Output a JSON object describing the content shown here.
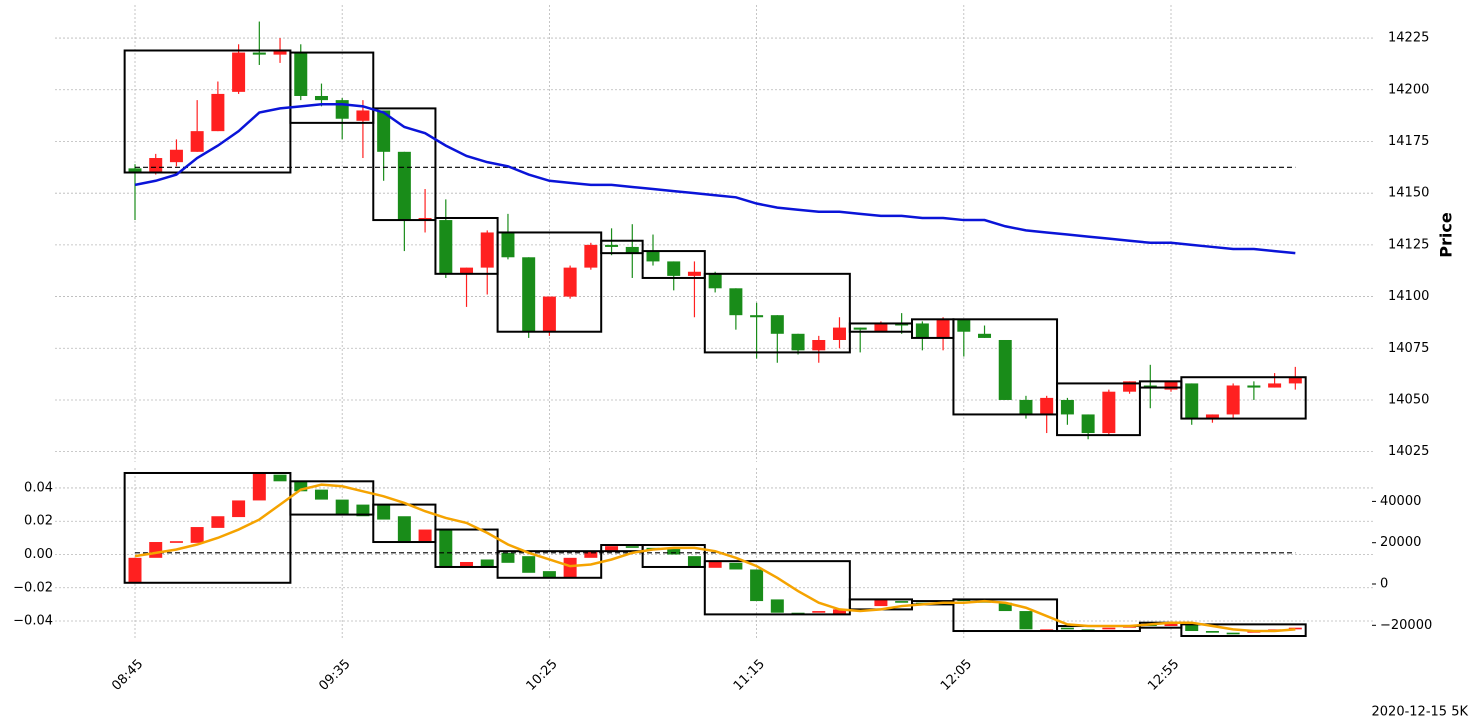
{
  "chart_data": [
    {
      "type": "candlestick",
      "y_label": "Price",
      "y_axis_side": "right",
      "grid": true,
      "up_color": "#ff2020",
      "down_color": "#198c19",
      "open": [
        14162,
        14160,
        14165,
        14170,
        14180,
        14199,
        14218,
        14217,
        14218,
        14197,
        14195,
        14185,
        14190,
        14170,
        14137,
        14137,
        14111,
        14114,
        14131,
        14119,
        14083,
        14100,
        14114,
        14125,
        14124,
        14122,
        14117,
        14110,
        14111,
        14104,
        14091,
        14091,
        14082,
        14074,
        14079,
        14085,
        14083,
        14087,
        14087,
        14080,
        14089,
        14082,
        14079,
        14050,
        14043,
        14050,
        14043,
        14034,
        14054,
        14057,
        14055,
        14058,
        14041,
        14043,
        14057,
        14056,
        14058
      ],
      "close": [
        14160,
        14167,
        14171,
        14180,
        14198,
        14218,
        14217,
        14219,
        14197,
        14195,
        14186,
        14190,
        14170,
        14137,
        14138,
        14111,
        14114,
        14131,
        14119,
        14083,
        14100,
        14114,
        14125,
        14124,
        14121,
        14117,
        14110,
        14112,
        14104,
        14091,
        14090,
        14082,
        14074,
        14079,
        14085,
        14084,
        14087,
        14086,
        14080,
        14089,
        14083,
        14080,
        14050,
        14043,
        14051,
        14043,
        14034,
        14054,
        14059,
        14056,
        14059,
        14041,
        14043,
        14057,
        14056,
        14058,
        14061
      ],
      "high": [
        14164,
        14169,
        14176,
        14195,
        14204,
        14222,
        14233,
        14225,
        14222,
        14203,
        14196,
        14195,
        14190,
        14170,
        14152,
        14147,
        14114,
        14132,
        14140,
        14119,
        14100,
        14115,
        14126,
        14133,
        14135,
        14130,
        14117,
        14117,
        14112,
        14104,
        14097,
        14091,
        14082,
        14081,
        14090,
        14085,
        14088,
        14092,
        14088,
        14090,
        14089,
        14086,
        14079,
        14052,
        14052,
        14051,
        14043,
        14055,
        14059,
        14067,
        14059,
        14058,
        14043,
        14058,
        14059,
        14063,
        14066
      ],
      "low": [
        14137,
        14159,
        14163,
        14170,
        14180,
        14198,
        14212,
        14213,
        14195,
        14192,
        14176,
        14167,
        14156,
        14122,
        14131,
        14109,
        14095,
        14101,
        14118,
        14080,
        14081,
        14099,
        14113,
        14120,
        14109,
        14115,
        14103,
        14090,
        14102,
        14084,
        14070,
        14068,
        14072,
        14068,
        14075,
        14073,
        14083,
        14082,
        14074,
        14074,
        14071,
        14080,
        14050,
        14041,
        14034,
        14038,
        14031,
        14033,
        14053,
        14046,
        14054,
        14038,
        14039,
        14041,
        14050,
        14056,
        14055
      ],
      "lines": [
        {
          "color": "#0a14d8",
          "values": [
            14154,
            14156,
            14159,
            14167,
            14173,
            14180,
            14189,
            14191,
            14192,
            14193,
            14193,
            14192,
            14189,
            14182,
            14179,
            14173,
            14168,
            14165,
            14163,
            14159,
            14156,
            14155,
            14154,
            14154,
            14153,
            14152,
            14151,
            14150,
            14149,
            14148,
            14145,
            14143,
            14142,
            14141,
            14141,
            14140,
            14139,
            14139,
            14138,
            14138,
            14137,
            14137,
            14134,
            14132,
            14131,
            14130,
            14129,
            14128,
            14127,
            14126,
            14126,
            14125,
            14124,
            14123,
            14123,
            14122,
            14121
          ]
        }
      ],
      "hlines": [
        {
          "value": 14162.5
        }
      ],
      "boxes": [
        {
          "from": 0,
          "to": 7,
          "high": 14219,
          "low": 14160
        },
        {
          "from": 8,
          "to": 11,
          "high": 14218,
          "low": 14184
        },
        {
          "from": 12,
          "to": 14,
          "high": 14191,
          "low": 14137
        },
        {
          "from": 15,
          "to": 17,
          "high": 14138,
          "low": 14111
        },
        {
          "from": 18,
          "to": 22,
          "high": 14131,
          "low": 14083
        },
        {
          "from": 23,
          "to": 24,
          "high": 14127,
          "low": 14121
        },
        {
          "from": 25,
          "to": 27,
          "high": 14122,
          "low": 14109
        },
        {
          "from": 28,
          "to": 34,
          "high": 14111,
          "low": 14073
        },
        {
          "from": 35,
          "to": 37,
          "high": 14087,
          "low": 14083
        },
        {
          "from": 38,
          "to": 39,
          "high": 14089,
          "low": 14080
        },
        {
          "from": 40,
          "to": 44,
          "high": 14089,
          "low": 14043
        },
        {
          "from": 45,
          "to": 48,
          "high": 14058,
          "low": 14033
        },
        {
          "from": 49,
          "to": 50,
          "high": 14059,
          "low": 14056
        },
        {
          "from": 51,
          "to": 56,
          "high": 14061,
          "low": 14041
        }
      ],
      "ylim": [
        14020,
        14241
      ],
      "yticks": [
        14025,
        14050,
        14075,
        14100,
        14125,
        14150,
        14175,
        14200,
        14225
      ]
    },
    {
      "type": "candlestick",
      "grid": true,
      "up_color": "#ff2020",
      "down_color": "#198c19",
      "categories": [
        "08:45",
        null,
        null,
        null,
        null,
        null,
        null,
        null,
        null,
        null,
        "09:35",
        null,
        null,
        null,
        null,
        null,
        null,
        null,
        null,
        null,
        "10:25",
        null,
        null,
        null,
        null,
        null,
        null,
        null,
        null,
        null,
        "11:15",
        null,
        null,
        null,
        null,
        null,
        null,
        null,
        null,
        null,
        "12:05",
        null,
        null,
        null,
        null,
        null,
        null,
        null,
        null,
        null,
        "12:55",
        null,
        null,
        null,
        null,
        null,
        null
      ],
      "open": [
        -0.017,
        -0.002,
        0.007,
        0.007,
        0.016,
        0.0225,
        0.0325,
        0.048,
        0.044,
        0.039,
        0.033,
        0.03,
        0.03,
        0.023,
        0.008,
        0.015,
        -0.0075,
        -0.003,
        0.001,
        -0.001,
        -0.01,
        -0.014,
        -0.002,
        0.002,
        0.005,
        0.004,
        0.004,
        -0.001,
        -0.008,
        -0.005,
        -0.009,
        -0.027,
        -0.035,
        -0.035,
        -0.036,
        -0.033,
        -0.031,
        -0.028,
        -0.029,
        -0.03,
        -0.027,
        -0.028,
        -0.029,
        -0.034,
        -0.046,
        -0.044,
        -0.045,
        -0.045,
        -0.044,
        -0.042,
        -0.043,
        -0.042,
        -0.046,
        -0.047,
        -0.047,
        -0.046,
        -0.045
      ],
      "close": [
        -0.002,
        0.0075,
        0.008,
        0.0165,
        0.023,
        0.0325,
        0.049,
        0.044,
        0.038,
        0.033,
        0.024,
        0.023,
        0.021,
        0.008,
        0.015,
        -0.0075,
        -0.0045,
        -0.007,
        -0.005,
        -0.011,
        -0.014,
        -0.002,
        0.002,
        0.005,
        0.004,
        0.003,
        0.0,
        -0.007,
        -0.004,
        -0.009,
        -0.028,
        -0.035,
        -0.036,
        -0.034,
        -0.033,
        -0.034,
        -0.027,
        -0.029,
        -0.03,
        -0.028,
        -0.028,
        -0.029,
        -0.034,
        -0.045,
        -0.045,
        -0.045,
        -0.046,
        -0.044,
        -0.043,
        -0.043,
        -0.041,
        -0.046,
        -0.047,
        -0.048,
        -0.046,
        -0.045,
        -0.044
      ],
      "lines": [
        {
          "color": "#f5a300",
          "values": [
            -0.001,
            0.001,
            0.003,
            0.006,
            0.01,
            0.015,
            0.021,
            0.03,
            0.039,
            0.042,
            0.041,
            0.038,
            0.035,
            0.031,
            0.026,
            0.022,
            0.019,
            0.013,
            0.006,
            0.001,
            -0.003,
            -0.007,
            -0.006,
            -0.003,
            0.001,
            0.003,
            0.004,
            0.004,
            0.002,
            -0.002,
            -0.007,
            -0.014,
            -0.022,
            -0.029,
            -0.033,
            -0.034,
            -0.033,
            -0.031,
            -0.03,
            -0.029,
            -0.029,
            -0.028,
            -0.029,
            -0.032,
            -0.037,
            -0.042,
            -0.043,
            -0.043,
            -0.043,
            -0.042,
            -0.041,
            -0.041,
            -0.043,
            -0.045,
            -0.046,
            -0.046,
            -0.045
          ]
        }
      ],
      "hlines": [
        {
          "value": 0.001
        }
      ],
      "boxes": [
        {
          "from": 0,
          "to": 7,
          "high": 0.049,
          "low": -0.017
        },
        {
          "from": 8,
          "to": 11,
          "high": 0.044,
          "low": 0.024
        },
        {
          "from": 12,
          "to": 14,
          "high": 0.03,
          "low": 0.0075
        },
        {
          "from": 15,
          "to": 17,
          "high": 0.015,
          "low": -0.0075
        },
        {
          "from": 18,
          "to": 22,
          "high": 0.002,
          "low": -0.014
        },
        {
          "from": 23,
          "to": 24,
          "high": 0.0057,
          "low": 0.002
        },
        {
          "from": 25,
          "to": 27,
          "high": 0.0057,
          "low": -0.0075
        },
        {
          "from": 28,
          "to": 34,
          "high": -0.004,
          "low": -0.036
        },
        {
          "from": 35,
          "to": 37,
          "high": -0.027,
          "low": -0.033
        },
        {
          "from": 38,
          "to": 39,
          "high": -0.028,
          "low": -0.03
        },
        {
          "from": 40,
          "to": 44,
          "high": -0.027,
          "low": -0.046
        },
        {
          "from": 45,
          "to": 48,
          "high": -0.043,
          "low": -0.046
        },
        {
          "from": 49,
          "to": 50,
          "high": -0.041,
          "low": -0.044
        },
        {
          "from": 51,
          "to": 56,
          "high": -0.042,
          "low": -0.049
        }
      ],
      "ylim": [
        -0.0514,
        0.052
      ],
      "yticks": [
        {
          "value": -0.04,
          "label": "−0.04"
        },
        {
          "value": -0.02,
          "label": "−0.02"
        },
        {
          "value": 0,
          "label": "0.00"
        },
        0.02,
        0.04
      ],
      "y2lim": [
        -27119,
        56175
      ],
      "y2ticks": [
        {
          "value": -20000,
          "label": "−20000"
        },
        0,
        20000,
        40000
      ]
    }
  ],
  "footer": "2020-12-15 5K"
}
